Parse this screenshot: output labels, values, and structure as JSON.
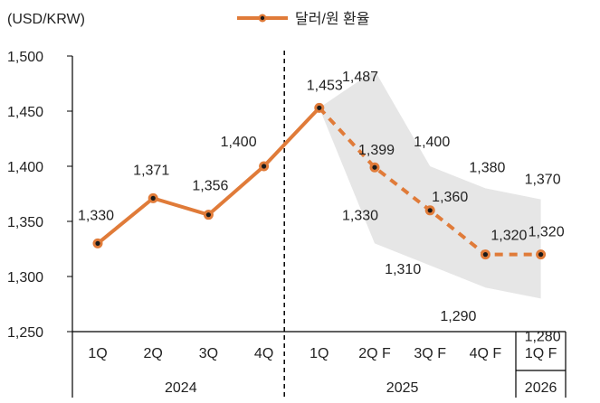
{
  "chart_data": {
    "type": "line",
    "unit_label": "(USD/KRW)",
    "legend_label": "달러/원 환율",
    "categories": [
      "1Q",
      "2Q",
      "3Q",
      "4Q",
      "1Q",
      "2Q F",
      "3Q F",
      "4Q F",
      "1Q F"
    ],
    "year_groups": [
      {
        "label": "2024",
        "span": 4
      },
      {
        "label": "2025",
        "span": 4
      },
      {
        "label": "2026",
        "span": 1
      }
    ],
    "series": [
      {
        "name": "달러/원 환율",
        "values": [
          1330,
          1371,
          1356,
          1400,
          1453,
          1399,
          1360,
          1320,
          1320
        ],
        "labels": [
          "1,330",
          "1,371",
          "1,356",
          "1,400",
          "1,453",
          "1,399",
          "1,360",
          "1,320",
          "1,320"
        ],
        "actual_through_index": 4
      }
    ],
    "forecast_range": {
      "start_index": 4,
      "upper": [
        1453,
        1487,
        1400,
        1380,
        1370
      ],
      "lower": [
        1453,
        1330,
        1310,
        1290,
        1280
      ],
      "upper_labels": [
        "",
        "1,487",
        "1,400",
        "1,380",
        "1,370"
      ],
      "lower_labels": [
        "",
        "1,330",
        "1,310",
        "1,290",
        "1,280"
      ]
    },
    "ylim": [
      1250,
      1500
    ],
    "yticks": [
      1250,
      1300,
      1350,
      1400,
      1450,
      1500
    ],
    "ytick_labels": [
      "1,250",
      "1,300",
      "1,350",
      "1,400",
      "1,450",
      "1,500"
    ],
    "divider_after_index": 3,
    "colors": {
      "line": "#e07b39",
      "band": "#e6e6e6",
      "marker": "#1a1a1a",
      "text": "#222222",
      "axis": "#000000"
    }
  }
}
